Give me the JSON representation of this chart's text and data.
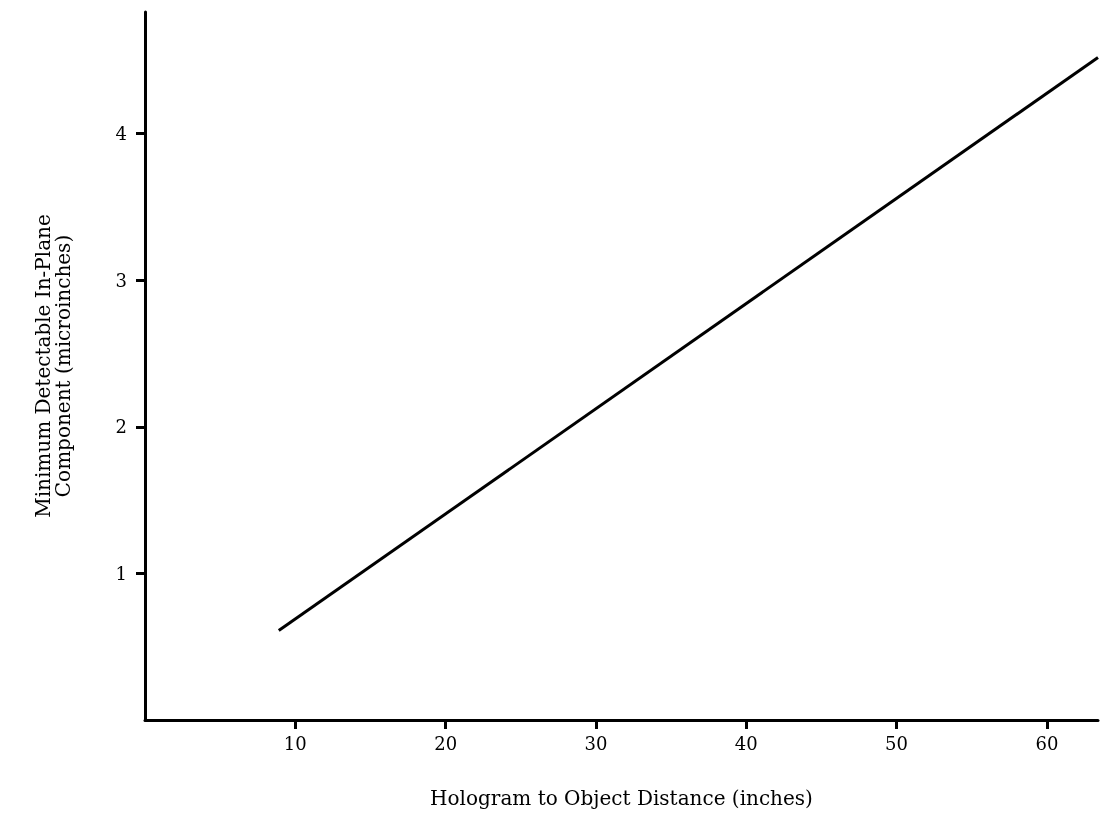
{
  "chart_data": {
    "type": "line",
    "xlabel": "Hologram to Object Distance (inches)",
    "ylabel": "Minimum Detectable In-Plane\nComponent (microinches)",
    "x": [
      8.9,
      63.4
    ],
    "series": [
      {
        "color": "#000000",
        "values": [
          0.61,
          4.52
        ]
      }
    ],
    "xlim": [
      0,
      63.4
    ],
    "ylim": [
      0,
      4.83
    ],
    "xticks": [
      10,
      20,
      30,
      40,
      50,
      60
    ],
    "yticks": [
      1,
      2,
      3,
      4
    ],
    "grid": false,
    "marker": "none",
    "line_style": "solid"
  }
}
